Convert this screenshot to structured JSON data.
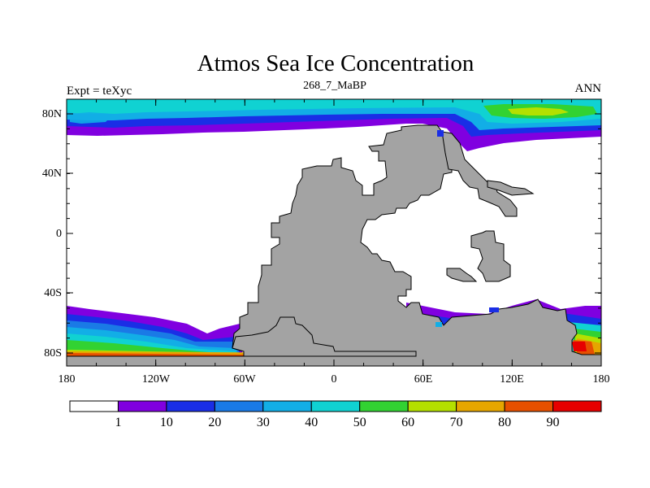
{
  "title": "Atmos Sea Ice Concentration",
  "subtitle": "268_7_MaBP",
  "left_label": "Expt = teXyc",
  "right_label": "ANN",
  "axes": {
    "x_ticks": [
      "180",
      "120W",
      "60W",
      "0",
      "60E",
      "120E",
      "180"
    ],
    "y_ticks": [
      "80N",
      "40N",
      "0",
      "40S",
      "80S"
    ]
  },
  "colorbar": {
    "labels": [
      "1",
      "10",
      "20",
      "30",
      "40",
      "50",
      "60",
      "70",
      "80",
      "90"
    ],
    "colors": [
      "#ffffff",
      "#8000e0",
      "#1a2ee6",
      "#1a7ae6",
      "#12aee6",
      "#10d2d2",
      "#32d232",
      "#b4e000",
      "#e6a600",
      "#e65000",
      "#e60000"
    ]
  },
  "colors": {
    "land": "#a3a3a3",
    "frame": "#000000"
  }
}
